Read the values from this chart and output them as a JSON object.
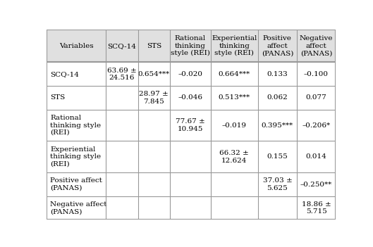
{
  "col_headers": [
    "Variables",
    "SCQ-14",
    "STS",
    "Rational\nthinking\nstyle (REI)",
    "Experiential\nthinking\nstyle (REI)",
    "Positive\naffect\n(PANAS)",
    "Negative\naffect\n(PANAS)"
  ],
  "row_labels": [
    "SCQ-14",
    "STS",
    "Rational\nthinking style\n(REI)",
    "Experiential\nthinking style\n(REI)",
    "Positive affect\n(PANAS)",
    "Negative affect\n(PANAS)"
  ],
  "cell_data": [
    [
      "63.69 ±\n24.516",
      "0.654***",
      "–0.020",
      "0.664***",
      "0.133",
      "–0.100"
    ],
    [
      "",
      "28.97 ±\n7.845",
      "–0.046",
      "0.513***",
      "0.062",
      "0.077"
    ],
    [
      "",
      "",
      "77.67 ±\n10.945",
      "–0.019",
      "0.395***",
      "–0.206*"
    ],
    [
      "",
      "",
      "",
      "66.32 ±\n12.624",
      "0.155",
      "0.014"
    ],
    [
      "",
      "",
      "",
      "",
      "37.03 ±\n5.625",
      "–0.250**"
    ],
    [
      "",
      "",
      "",
      "",
      "",
      "18.86 ±\n5.715"
    ]
  ],
  "background_color": "#ffffff",
  "header_bg": "#e0e0e0",
  "border_color": "#999999",
  "text_color": "#000000",
  "font_size": 7.5,
  "header_font_size": 7.5
}
